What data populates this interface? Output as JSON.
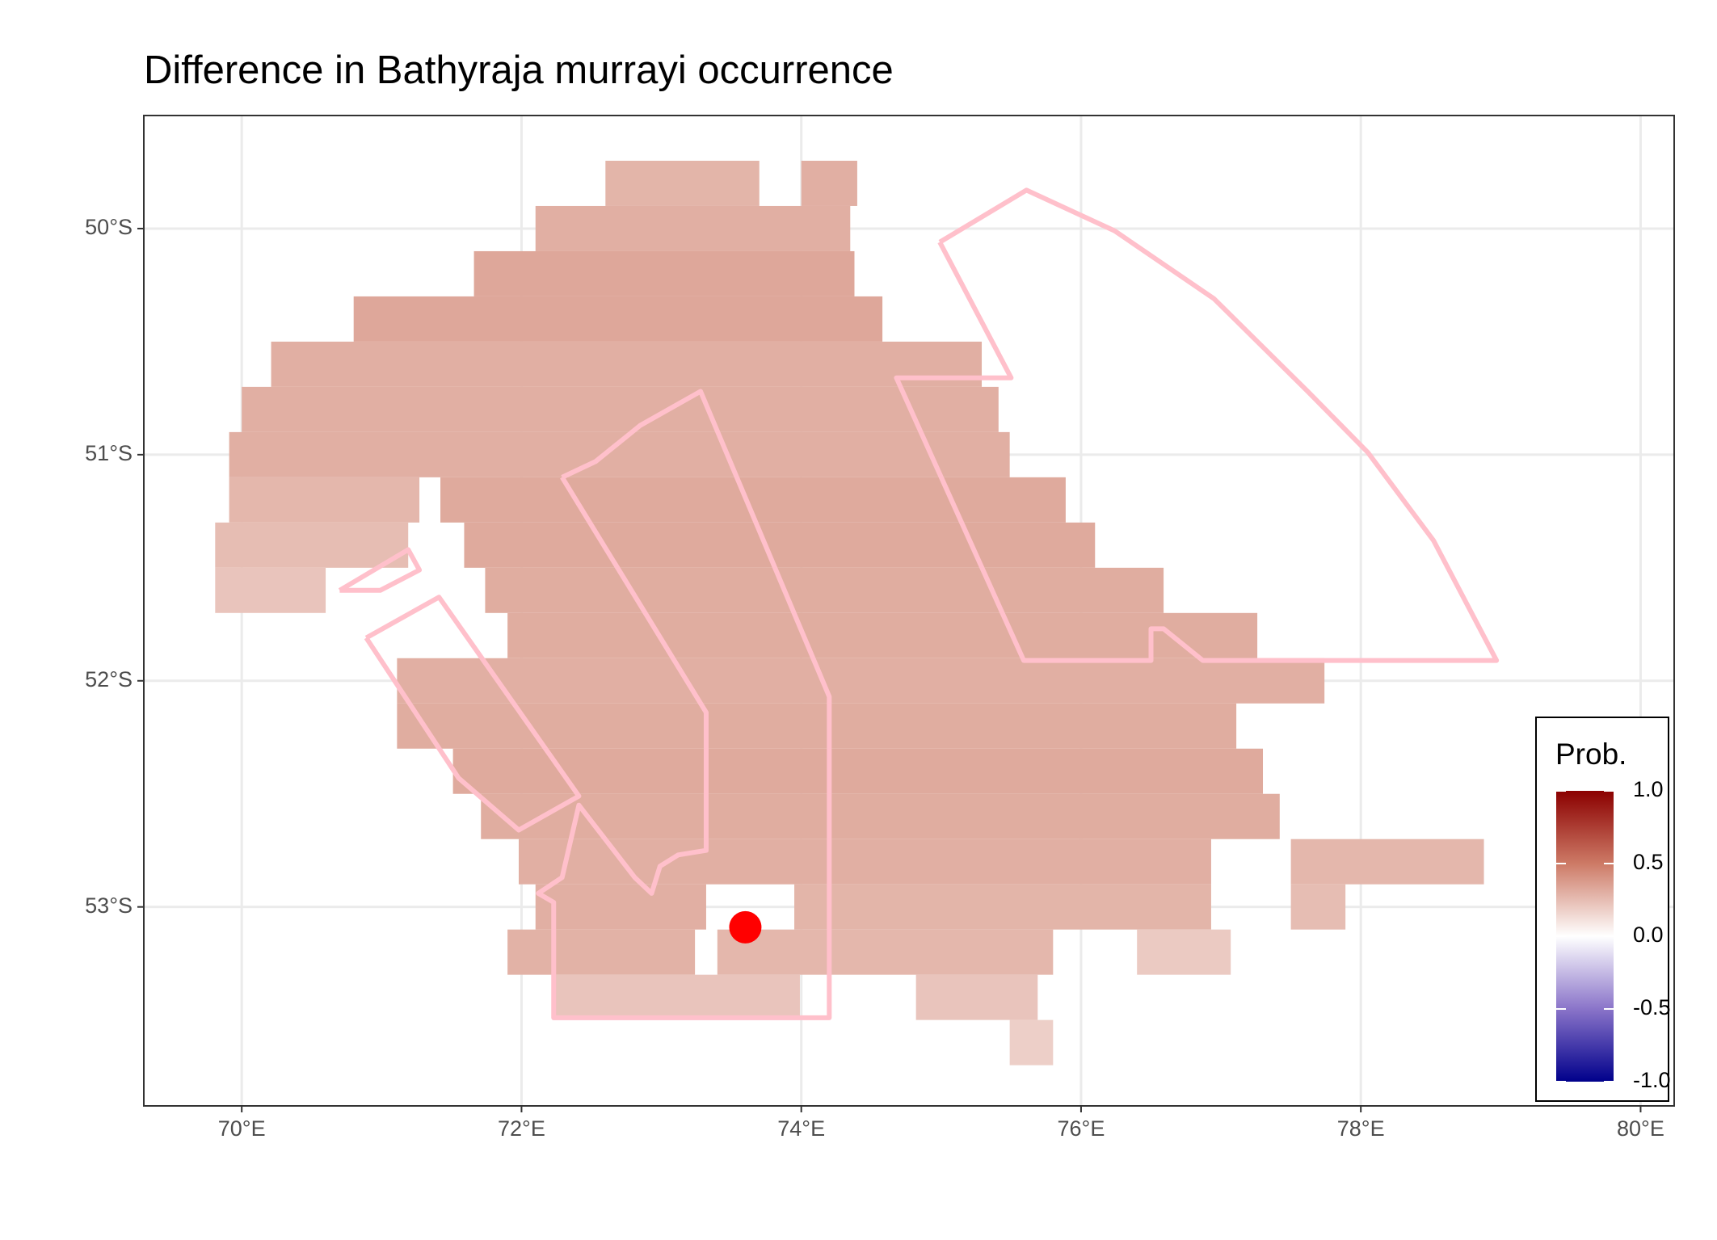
{
  "chart_data": {
    "type": "raster-map",
    "title": "Difference in  Bathyraja murrayi occurrence",
    "xlim": [
      69.3,
      80.24
    ],
    "ylim": [
      -53.88,
      -49.5
    ],
    "xticks": [
      {
        "value": 70,
        "label": "70°E"
      },
      {
        "value": 72,
        "label": "72°E"
      },
      {
        "value": 74,
        "label": "74°E"
      },
      {
        "value": 76,
        "label": "76°E"
      },
      {
        "value": 78,
        "label": "78°E"
      },
      {
        "value": 80,
        "label": "80°E"
      }
    ],
    "yticks": [
      {
        "value": -50,
        "label": "50°S"
      },
      {
        "value": -51,
        "label": "51°S"
      },
      {
        "value": -52,
        "label": "52°S"
      },
      {
        "value": -53,
        "label": "53°S"
      }
    ],
    "grid": true,
    "legend": {
      "title": "Prob.",
      "position": "right",
      "limits": [
        -1,
        1
      ],
      "palette": [
        "#00008b",
        "#8a74c9",
        "#ffffff",
        "#cd7a66",
        "#8b0000"
      ],
      "ticks": [
        {
          "value": 1,
          "label": "1.0"
        },
        {
          "value": 0.5,
          "label": "0.5"
        },
        {
          "value": 0,
          "label": "0.0"
        },
        {
          "value": -0.5,
          "label": "-0.5"
        },
        {
          "value": -1,
          "label": "-1.0"
        }
      ]
    },
    "cells": [
      {
        "lat": [
          -49.7,
          -49.9
        ],
        "lon": [
          72.6,
          73.7
        ],
        "value": 0.28
      },
      {
        "lat": [
          -49.7,
          -49.9
        ],
        "lon": [
          74.0,
          74.4
        ],
        "value": 0.3
      },
      {
        "lat": [
          -49.9,
          -50.1
        ],
        "lon": [
          72.1,
          74.35
        ],
        "value": 0.3
      },
      {
        "lat": [
          -50.1,
          -50.3
        ],
        "lon": [
          71.66,
          74.38
        ],
        "value": 0.33
      },
      {
        "lat": [
          -50.3,
          -50.5
        ],
        "lon": [
          70.8,
          74.58
        ],
        "value": 0.33
      },
      {
        "lat": [
          -50.5,
          -50.7
        ],
        "lon": [
          70.21,
          75.29
        ],
        "value": 0.3
      },
      {
        "lat": [
          -50.7,
          -50.9
        ],
        "lon": [
          70.0,
          75.41
        ],
        "value": 0.3
      },
      {
        "lat": [
          -50.9,
          -51.1
        ],
        "lon": [
          69.91,
          75.49
        ],
        "value": 0.3
      },
      {
        "lat": [
          -51.1,
          -51.3
        ],
        "lon": [
          69.91,
          71.27
        ],
        "value": 0.27
      },
      {
        "lat": [
          -51.1,
          -51.3
        ],
        "lon": [
          71.42,
          75.89
        ],
        "value": 0.32
      },
      {
        "lat": [
          -51.3,
          -51.5
        ],
        "lon": [
          69.81,
          71.19
        ],
        "value": 0.25
      },
      {
        "lat": [
          -51.3,
          -51.5
        ],
        "lon": [
          71.59,
          76.1
        ],
        "value": 0.32
      },
      {
        "lat": [
          -51.5,
          -51.7
        ],
        "lon": [
          69.81,
          70.6
        ],
        "value": 0.22
      },
      {
        "lat": [
          -51.5,
          -51.7
        ],
        "lon": [
          71.74,
          76.59
        ],
        "value": 0.31
      },
      {
        "lat": [
          -51.7,
          -51.9
        ],
        "lon": [
          71.9,
          77.26
        ],
        "value": 0.31
      },
      {
        "lat": [
          -51.9,
          -52.1
        ],
        "lon": [
          71.11,
          77.74
        ],
        "value": 0.3
      },
      {
        "lat": [
          -52.1,
          -52.3
        ],
        "lon": [
          71.11,
          77.11
        ],
        "value": 0.31
      },
      {
        "lat": [
          -52.3,
          -52.5
        ],
        "lon": [
          71.51,
          77.3
        ],
        "value": 0.32
      },
      {
        "lat": [
          -52.5,
          -52.7
        ],
        "lon": [
          71.71,
          77.42
        ],
        "value": 0.31
      },
      {
        "lat": [
          -52.7,
          -52.9
        ],
        "lon": [
          71.98,
          76.93
        ],
        "value": 0.3
      },
      {
        "lat": [
          -52.7,
          -52.9
        ],
        "lon": [
          77.5,
          78.88
        ],
        "value": 0.27
      },
      {
        "lat": [
          -52.9,
          -53.1
        ],
        "lon": [
          72.1,
          73.32
        ],
        "value": 0.3
      },
      {
        "lat": [
          -52.9,
          -53.1
        ],
        "lon": [
          73.95,
          76.93
        ],
        "value": 0.28
      },
      {
        "lat": [
          -52.9,
          -53.1
        ],
        "lon": [
          77.5,
          77.89
        ],
        "value": 0.25
      },
      {
        "lat": [
          -53.1,
          -53.3
        ],
        "lon": [
          71.9,
          73.24
        ],
        "value": 0.29
      },
      {
        "lat": [
          -53.1,
          -53.3
        ],
        "lon": [
          73.4,
          75.8
        ],
        "value": 0.27
      },
      {
        "lat": [
          -53.1,
          -53.3
        ],
        "lon": [
          76.4,
          77.07
        ],
        "value": 0.2
      },
      {
        "lat": [
          -53.3,
          -53.5
        ],
        "lon": [
          72.22,
          73.99
        ],
        "value": 0.22
      },
      {
        "lat": [
          -53.3,
          -53.5
        ],
        "lon": [
          74.82,
          75.69
        ],
        "value": 0.22
      },
      {
        "lat": [
          -53.5,
          -53.7
        ],
        "lon": [
          75.49,
          75.8
        ],
        "value": 0.18
      }
    ],
    "outline_color": "#ffc0cb",
    "outlines": [
      {
        "lon": [
          74.99,
          75.61,
          76.24,
          76.95,
          77.62,
          78.05,
          78.52,
          78.97,
          76.87,
          76.59,
          76.5,
          76.5,
          75.59,
          74.68,
          75.5,
          74.99
        ],
        "lat": [
          -50.06,
          -49.83,
          -50.01,
          -50.31,
          -50.72,
          -50.99,
          -51.38,
          -51.91,
          -51.91,
          -51.77,
          -51.77,
          -51.91,
          -51.91,
          -50.66,
          -50.66,
          -50.06
        ]
      },
      {
        "lon": [
          72.29,
          72.53,
          72.85,
          73.28,
          74.2,
          74.2,
          72.23,
          72.23,
          72.12,
          72.29,
          72.41,
          72.81,
          72.93,
          72.99,
          73.12,
          73.32,
          73.32,
          72.29
        ],
        "lat": [
          -51.1,
          -51.03,
          -50.87,
          -50.72,
          -52.07,
          -53.49,
          -53.49,
          -52.98,
          -52.94,
          -52.87,
          -52.55,
          -52.87,
          -52.94,
          -52.82,
          -52.77,
          -52.75,
          -52.14,
          -51.1
        ]
      },
      {
        "lon": [
          70.89,
          71.41,
          72.41,
          71.98,
          71.55,
          70.89
        ],
        "lat": [
          -51.81,
          -51.63,
          -52.51,
          -52.66,
          -52.43,
          -51.81
        ]
      },
      {
        "lon": [
          70.7,
          71.19,
          71.27,
          70.99,
          70.7
        ],
        "lat": [
          -51.6,
          -51.42,
          -51.51,
          -51.6,
          -51.6
        ]
      }
    ],
    "point": {
      "lon": 73.6,
      "lat": -53.09,
      "color": "#ff0000"
    }
  }
}
